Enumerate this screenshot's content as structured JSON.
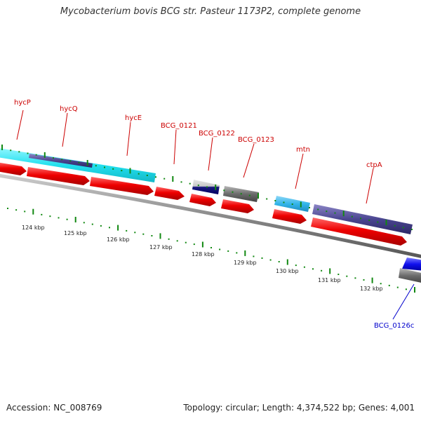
{
  "title": "Mycobacterium bovis BCG str. Pasteur 1173P2, complete genome",
  "accession_text": "Accession: NC_008769",
  "summary_text": "Topology: circular; Length: 4,374,522 bp; Genes: 4,001",
  "colors": {
    "gene_label": "#cc0000",
    "complement_label": "#0000cc",
    "cds_arrow": "#ee0000",
    "cyan_feature": "#22e0ee",
    "light_blue_feature": "#33b5ea",
    "indigo_feature": "#4a4590",
    "gray_feature": "#6b6b6b",
    "blue_feature": "#1010ee",
    "tick": "#118811",
    "backbone": "#999999"
  },
  "scale": {
    "unit": "kbp",
    "labels": [
      "124 kbp",
      "125 kbp",
      "126 kbp",
      "127 kbp",
      "128 kbp",
      "129 kbp",
      "130 kbp",
      "131 kbp",
      "132 kbp"
    ]
  },
  "genes": {
    "hycP": "hycP",
    "hycQ": "hycQ",
    "hycE": "hycE",
    "BCG_0121": "BCG_0121",
    "BCG_0122": "BCG_0122",
    "BCG_0123": "BCG_0123",
    "mtn": "mtn",
    "ctpA": "ctpA",
    "BCG_0126c": "BCG_0126c"
  }
}
